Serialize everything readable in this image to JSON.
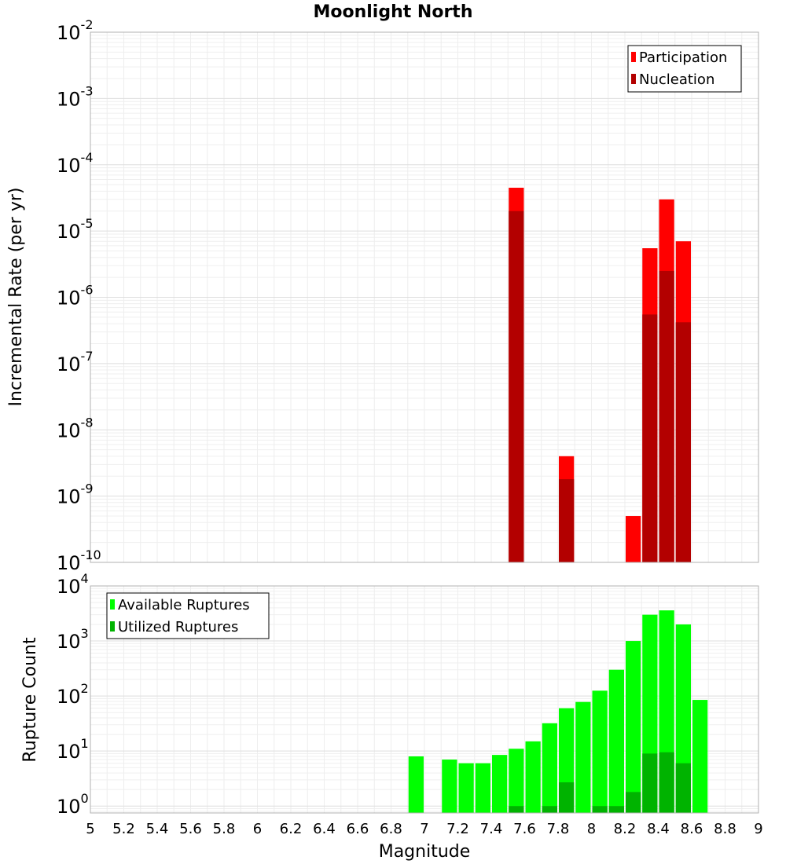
{
  "chart_data": [
    {
      "type": "bar",
      "title": "Moonlight North",
      "xlabel": "",
      "ylabel": "Incremental Rate (per yr)",
      "yscale": "log",
      "ylim": [
        1e-10,
        0.01
      ],
      "ytick_exponents": [
        -2,
        -3,
        -4,
        -5,
        -6,
        -7,
        -8,
        -9,
        -10
      ],
      "legend_position": "top-right",
      "series": [
        {
          "name": "Participation",
          "color": "#ff0000",
          "points": [
            {
              "x": 7.55,
              "y": 4.5e-05
            },
            {
              "x": 7.85,
              "y": 4e-09
            },
            {
              "x": 8.25,
              "y": 5e-10
            },
            {
              "x": 8.35,
              "y": 5.5e-06
            },
            {
              "x": 8.45,
              "y": 3e-05
            },
            {
              "x": 8.55,
              "y": 7e-06
            }
          ]
        },
        {
          "name": "Nucleation",
          "color": "#b30000",
          "points": [
            {
              "x": 7.55,
              "y": 2e-05
            },
            {
              "x": 7.85,
              "y": 1.8e-09
            },
            {
              "x": 8.35,
              "y": 5.5e-07
            },
            {
              "x": 8.45,
              "y": 2.5e-06
            },
            {
              "x": 8.55,
              "y": 4.2e-07
            }
          ]
        }
      ]
    },
    {
      "type": "bar",
      "title": "",
      "xlabel": "Magnitude",
      "ylabel": "Rupture Count",
      "yscale": "log",
      "xlim": [
        5,
        9
      ],
      "ylim": [
        0.75,
        10000
      ],
      "ytick_exponents": [
        0,
        1,
        2,
        3,
        4
      ],
      "x_ticks": [
        "5",
        "5.2",
        "5.4",
        "5.6",
        "5.8",
        "6",
        "6.2",
        "6.4",
        "6.6",
        "6.8",
        "7",
        "7.2",
        "7.4",
        "7.6",
        "7.8",
        "8",
        "8.2",
        "8.4",
        "8.6",
        "8.8",
        "9"
      ],
      "legend_position": "top-left",
      "series": [
        {
          "name": "Available Ruptures",
          "color": "#00ff00",
          "points": [
            {
              "x": 6.95,
              "y": 8
            },
            {
              "x": 7.15,
              "y": 7
            },
            {
              "x": 7.25,
              "y": 6
            },
            {
              "x": 7.35,
              "y": 6
            },
            {
              "x": 7.45,
              "y": 8.5
            },
            {
              "x": 7.55,
              "y": 11
            },
            {
              "x": 7.65,
              "y": 15
            },
            {
              "x": 7.75,
              "y": 32
            },
            {
              "x": 7.85,
              "y": 60
            },
            {
              "x": 7.95,
              "y": 78
            },
            {
              "x": 8.05,
              "y": 125
            },
            {
              "x": 8.15,
              "y": 300
            },
            {
              "x": 8.25,
              "y": 1000
            },
            {
              "x": 8.35,
              "y": 3000
            },
            {
              "x": 8.45,
              "y": 3600
            },
            {
              "x": 8.55,
              "y": 2000
            },
            {
              "x": 8.65,
              "y": 85
            }
          ]
        },
        {
          "name": "Utilized Ruptures",
          "color": "#00b300",
          "points": [
            {
              "x": 7.55,
              "y": 1
            },
            {
              "x": 7.75,
              "y": 1
            },
            {
              "x": 7.85,
              "y": 2.7
            },
            {
              "x": 8.05,
              "y": 1
            },
            {
              "x": 8.15,
              "y": 1
            },
            {
              "x": 8.25,
              "y": 1.8
            },
            {
              "x": 8.35,
              "y": 9
            },
            {
              "x": 8.45,
              "y": 9.5
            },
            {
              "x": 8.55,
              "y": 6
            }
          ]
        }
      ]
    }
  ]
}
